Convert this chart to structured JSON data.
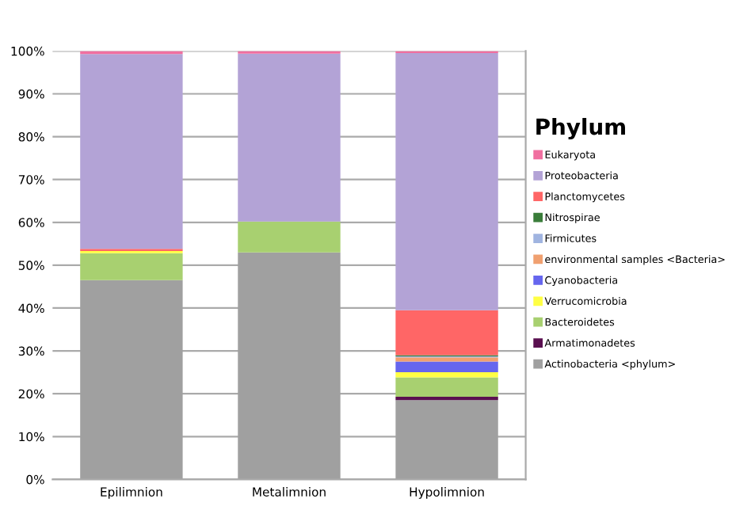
{
  "chart_data": {
    "type": "bar",
    "stacked": true,
    "legend_title": "Phylum",
    "legend": "right",
    "categories": [
      "Epilimnion",
      "Metalimnion",
      "Hypolimnion"
    ],
    "series": [
      {
        "name": "Actinobacteria <phylum>",
        "color": "#a0a0a0",
        "values": [
          46.5,
          53,
          18.5
        ]
      },
      {
        "name": "Armatimonadetes",
        "color": "#5a1050",
        "values": [
          0,
          0,
          0.8
        ]
      },
      {
        "name": "Bacteroidetes",
        "color": "#a8d070",
        "values": [
          6.3,
          7.2,
          4.5
        ]
      },
      {
        "name": "Verrucomicrobia",
        "color": "#ffff44",
        "values": [
          0.5,
          0,
          1.2
        ]
      },
      {
        "name": "Cyanobacteria",
        "color": "#6666ee",
        "values": [
          0,
          0,
          2.5
        ]
      },
      {
        "name": "environmental samples <Bacteria>",
        "color": "#f0a070",
        "values": [
          0,
          0,
          1
        ]
      },
      {
        "name": "Firmicutes",
        "color": "#a0b4e0",
        "values": [
          0,
          0,
          0.2
        ]
      },
      {
        "name": "Nitrospirae",
        "color": "#3a7d3a",
        "values": [
          0,
          0,
          0.3
        ]
      },
      {
        "name": "Planctomycetes",
        "color": "#ff6666",
        "values": [
          0.5,
          0,
          10.5
        ]
      },
      {
        "name": "Proteobacteria",
        "color": "#b3a3d6",
        "values": [
          45.5,
          39.2,
          60
        ]
      },
      {
        "name": "Eukaryota",
        "color": "#f06fa0",
        "values": [
          0.7,
          0.6,
          0.5
        ]
      }
    ],
    "ylim": [
      0,
      100
    ],
    "yticks": [
      {
        "value": 0,
        "label": "0%"
      },
      {
        "value": 10,
        "label": "10%"
      },
      {
        "value": 20,
        "label": "20%"
      },
      {
        "value": 30,
        "label": "30%"
      },
      {
        "value": 40,
        "label": "40%"
      },
      {
        "value": 50,
        "label": "50%"
      },
      {
        "value": 60,
        "label": "60%"
      },
      {
        "value": 70,
        "label": "70%"
      },
      {
        "value": 80,
        "label": "80%"
      },
      {
        "value": 90,
        "label": "90%"
      },
      {
        "value": 100,
        "label": "100%"
      }
    ],
    "grid": "y"
  }
}
